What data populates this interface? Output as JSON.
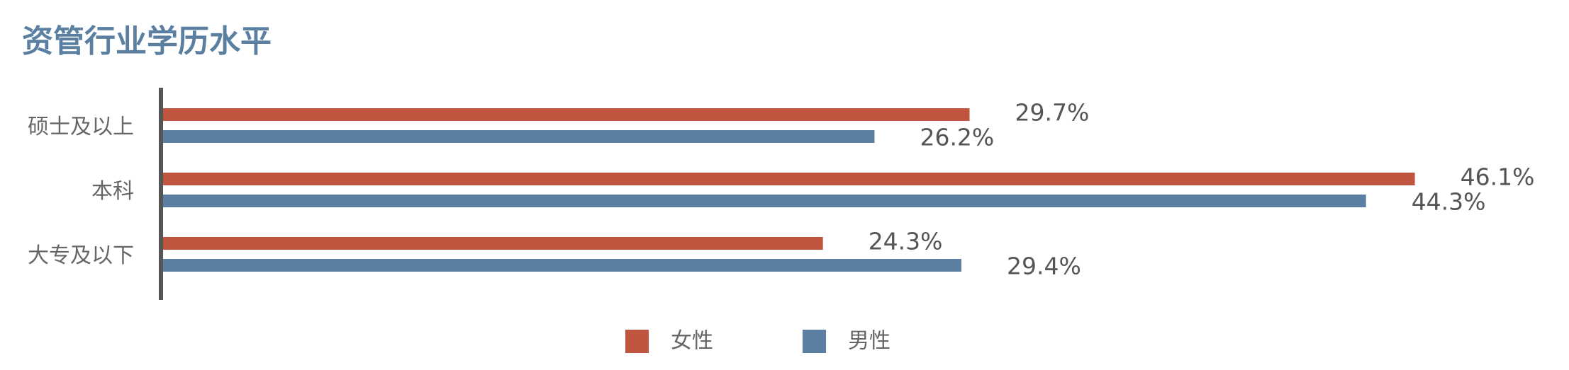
{
  "chart_data": {
    "type": "bar",
    "orientation": "horizontal",
    "title": "资管行业学历水平",
    "categories": [
      "硕士及以上",
      "本科",
      "大专及以下"
    ],
    "series": [
      {
        "name": "女性",
        "color": "#c0553f",
        "values": [
          29.7,
          46.1,
          24.3
        ],
        "value_labels": [
          "29.7%",
          "46.1%",
          "24.3%"
        ]
      },
      {
        "name": "男性",
        "color": "#5b7fa3",
        "values": [
          26.2,
          44.3,
          29.4
        ],
        "value_labels": [
          "26.2%",
          "44.3%",
          "29.4%"
        ]
      }
    ],
    "legend": "bottom"
  }
}
